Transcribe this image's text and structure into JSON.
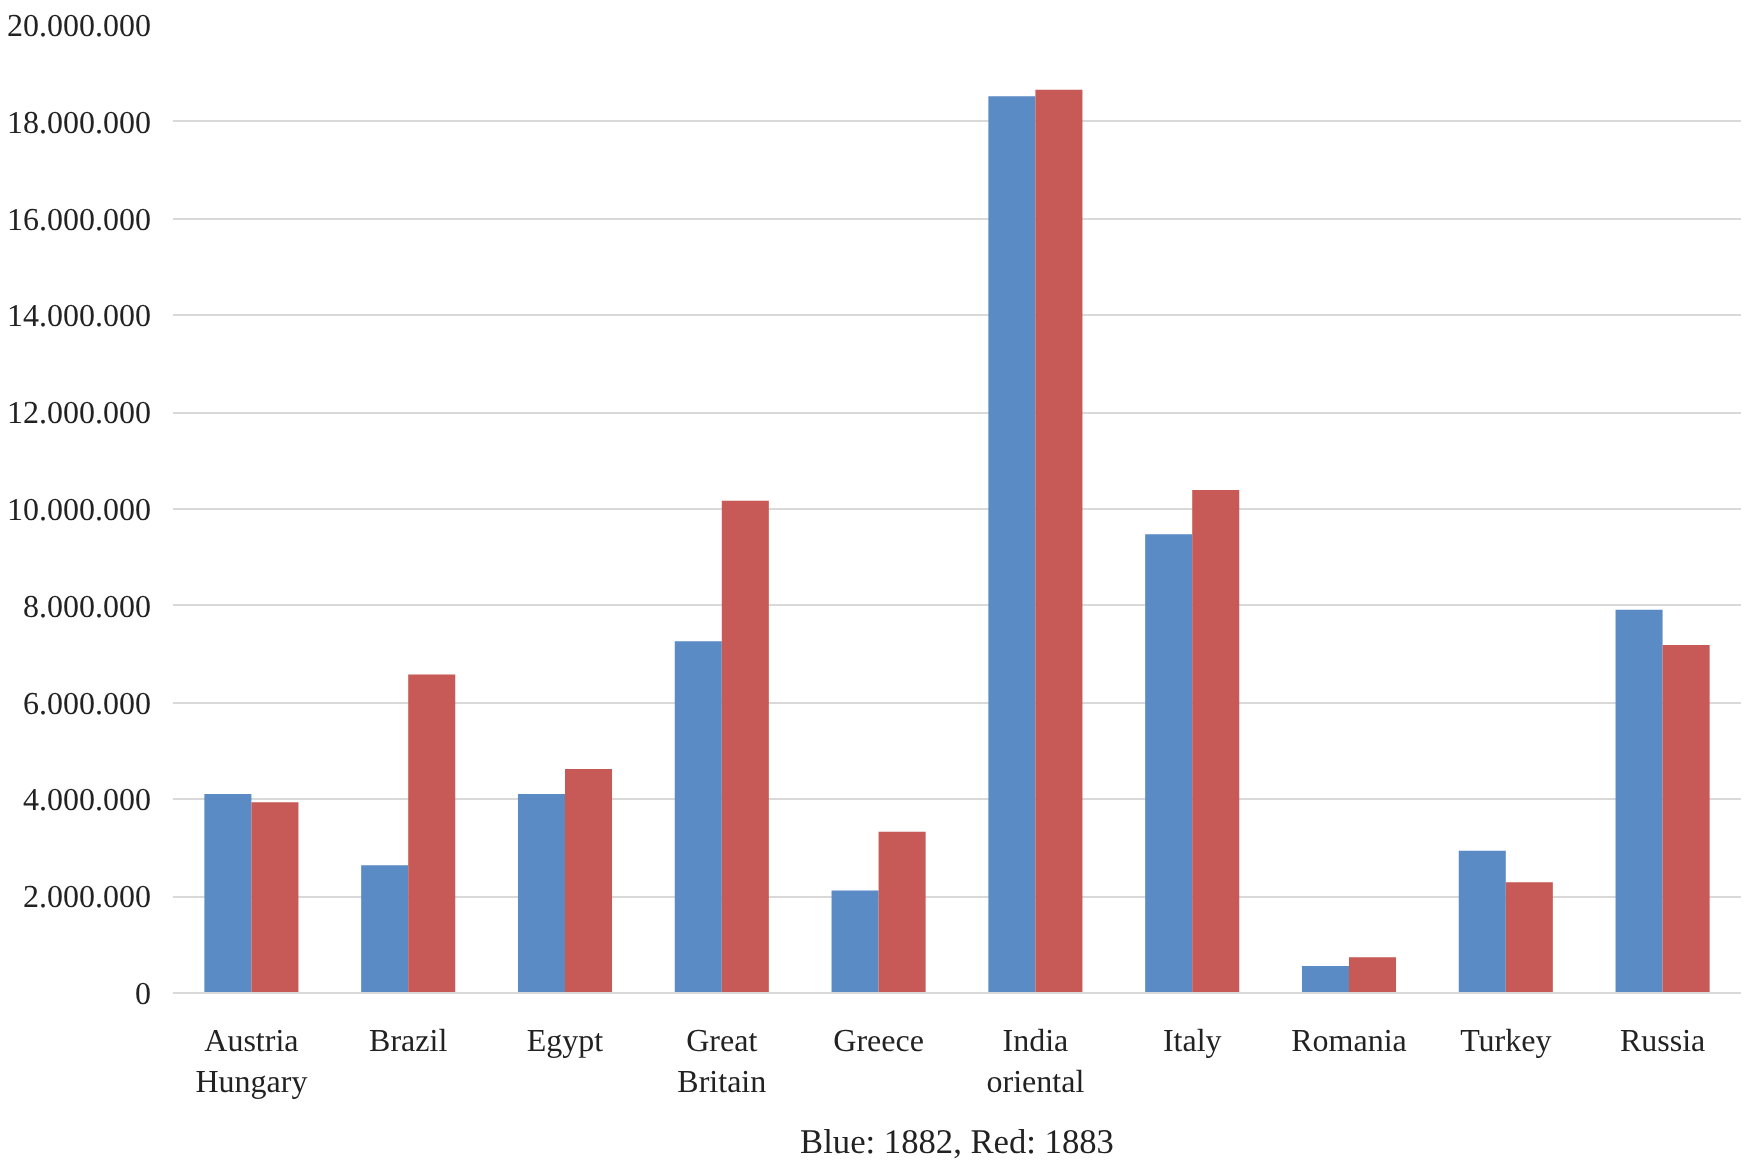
{
  "chart_data": {
    "type": "bar",
    "categories": [
      "Austria Hungary",
      "Brazil",
      "Egypt",
      "Great Britain",
      "Greece",
      "India oriental",
      "Italy",
      "Romania",
      "Turkey",
      "Russia"
    ],
    "series": [
      {
        "color": "#5b8bc5",
        "values": [
          4110000,
          2640000,
          4110000,
          7270000,
          2120000,
          18530000,
          9480000,
          560000,
          2940000,
          7920000
        ]
      },
      {
        "color": "#c75a56",
        "values": [
          3940000,
          6580000,
          4630000,
          10170000,
          3330000,
          18660000,
          10390000,
          740000,
          2290000,
          7190000
        ]
      }
    ],
    "ylim": [
      0,
      20000000
    ],
    "yticks": [
      {
        "value": 0,
        "label": "0"
      },
      {
        "value": 2000000,
        "label": "2.000.000"
      },
      {
        "value": 4000000,
        "label": "4.000.000"
      },
      {
        "value": 6000000,
        "label": "6.000.000"
      },
      {
        "value": 8000000,
        "label": "8.000.000"
      },
      {
        "value": 10000000,
        "label": "10.000.000"
      },
      {
        "value": 12000000,
        "label": "12.000.000"
      },
      {
        "value": 14000000,
        "label": "14.000.000"
      },
      {
        "value": 16000000,
        "label": "16.000.000"
      },
      {
        "value": 18000000,
        "label": "18.000.000"
      },
      {
        "value": 20000000,
        "label": "20.000.000"
      }
    ],
    "grid": "y",
    "annotations": [
      "Blue: 1882, Red: 1883"
    ]
  }
}
